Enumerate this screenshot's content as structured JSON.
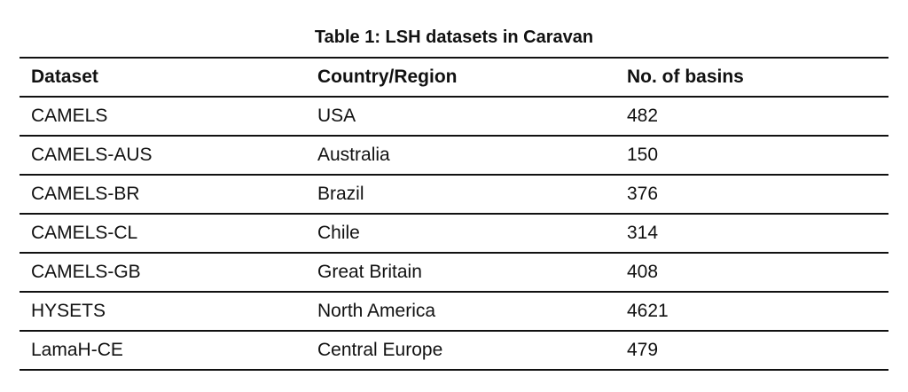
{
  "title": "Table 1: LSH datasets in Caravan",
  "columns": [
    "Dataset",
    "Country/Region",
    "No. of basins"
  ],
  "rows": [
    [
      "CAMELS",
      "USA",
      "482"
    ],
    [
      "CAMELS-AUS",
      "Australia",
      "150"
    ],
    [
      "CAMELS-BR",
      "Brazil",
      "376"
    ],
    [
      "CAMELS-CL",
      "Chile",
      "314"
    ],
    [
      "CAMELS-GB",
      "Great Britain",
      "408"
    ],
    [
      "HYSETS",
      "North America",
      "4621"
    ],
    [
      "LamaH-CE",
      "Central Europe",
      "479"
    ]
  ]
}
